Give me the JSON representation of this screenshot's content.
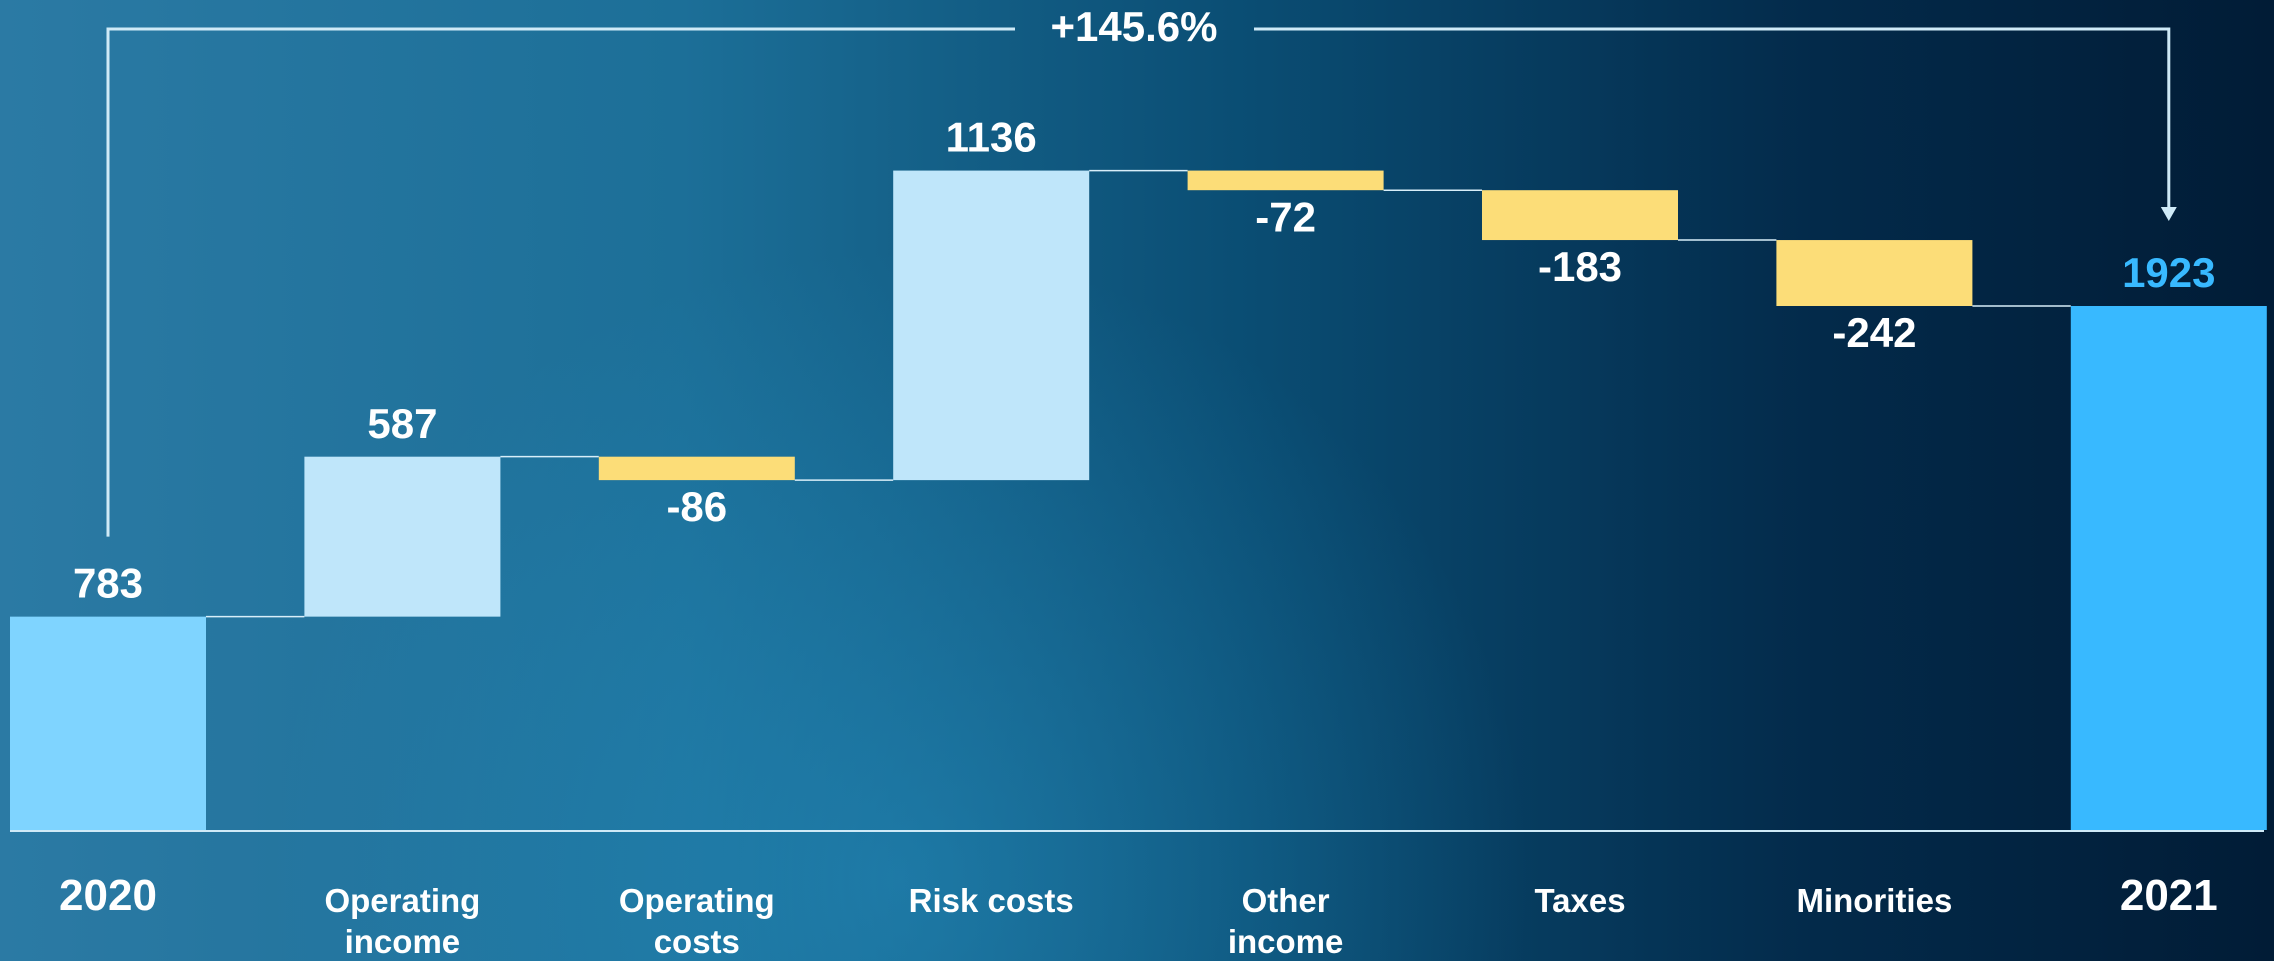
{
  "chart_data": {
    "type": "waterfall",
    "categories": [
      "2020",
      "Operating income",
      "Operating costs",
      "Risk costs",
      "Other income",
      "Taxes",
      "Minorities",
      "2021"
    ],
    "values": [
      783,
      587,
      -86,
      1136,
      -72,
      -183,
      -242,
      1923
    ],
    "measures": [
      "absolute",
      "relative",
      "relative",
      "relative",
      "relative",
      "relative",
      "relative",
      "total"
    ],
    "colors": [
      "#7fd4ff",
      "#bfe6fa",
      "#fcdd78",
      "#bfe6fa",
      "#fcdd78",
      "#fcdd78",
      "#fcdd78",
      "#38b9ff"
    ],
    "label_colors": [
      "#ffffff",
      "#ffffff",
      "#ffffff",
      "#ffffff",
      "#ffffff",
      "#ffffff",
      "#ffffff",
      "#38b9ff"
    ],
    "annotation": "+145.6%"
  }
}
